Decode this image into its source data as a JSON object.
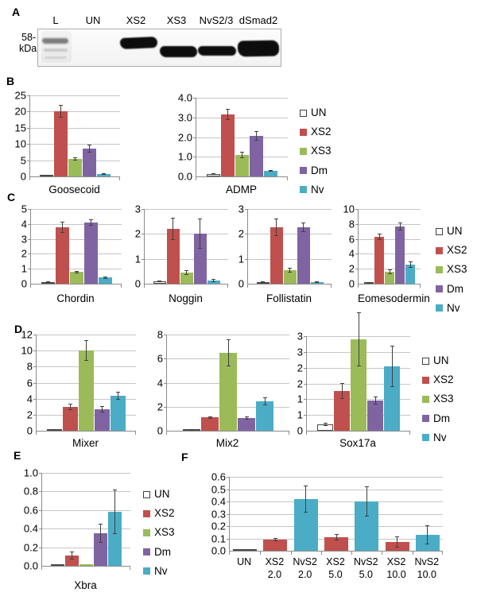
{
  "panels": {
    "A": {
      "label": "A",
      "marker_line1": "58-",
      "marker_line2": "kDa",
      "lanes": [
        "L",
        "UN",
        "XS2",
        "XS3",
        "NvS2/3",
        "dSmad2"
      ]
    },
    "B": {
      "label": "B"
    },
    "C": {
      "label": "C"
    },
    "D": {
      "label": "D"
    },
    "E": {
      "label": "E"
    },
    "F": {
      "label": "F"
    }
  },
  "legend_entries": [
    "UN",
    "XS2",
    "XS3",
    "Dm",
    "Nv"
  ],
  "series_colors": {
    "UN": "#FFFFFF",
    "XS2": "#C0504D",
    "XS3": "#9BBB59",
    "Dm": "#8064A2",
    "Nv": "#4BACC6"
  },
  "chart_data": [
    {
      "id": "goosecoid",
      "panel": "B",
      "type": "bar",
      "title": "Goosecoid",
      "ylim": [
        0,
        25
      ],
      "yticks": [
        "0",
        "5",
        "10",
        "15",
        "20",
        "25"
      ],
      "grid": true,
      "bars": [
        {
          "series": "UN",
          "value": 0.2,
          "err": 0
        },
        {
          "series": "XS2",
          "value": 20.2,
          "err": 2.0
        },
        {
          "series": "XS3",
          "value": 5.5,
          "err": 0.4
        },
        {
          "series": "Dm",
          "value": 8.5,
          "err": 1.3
        },
        {
          "series": "Nv",
          "value": 0.7,
          "err": 0.25
        }
      ]
    },
    {
      "id": "admp",
      "panel": "B",
      "type": "bar",
      "title": "ADMP",
      "ylim": [
        0,
        4
      ],
      "yticks": [
        "0.0",
        "1.0",
        "2.0",
        "3.0",
        "4.0"
      ],
      "grid": true,
      "bars": [
        {
          "series": "UN",
          "value": 0.12,
          "err": 0.05
        },
        {
          "series": "XS2",
          "value": 3.15,
          "err": 0.3
        },
        {
          "series": "XS3",
          "value": 1.1,
          "err": 0.15
        },
        {
          "series": "Dm",
          "value": 2.05,
          "err": 0.25
        },
        {
          "series": "Nv",
          "value": 0.28,
          "err": 0.05
        }
      ]
    },
    {
      "id": "chordin",
      "panel": "C",
      "type": "bar",
      "title": "Chordin",
      "ylim": [
        0,
        5
      ],
      "yticks": [
        "0",
        "1",
        "2",
        "3",
        "4",
        "5"
      ],
      "grid": true,
      "bars": [
        {
          "series": "UN",
          "value": 0.1,
          "err": 0.03
        },
        {
          "series": "XS2",
          "value": 3.75,
          "err": 0.35
        },
        {
          "series": "XS3",
          "value": 0.8,
          "err": 0.08
        },
        {
          "series": "Dm",
          "value": 4.1,
          "err": 0.2
        },
        {
          "series": "Nv",
          "value": 0.45,
          "err": 0.08
        }
      ]
    },
    {
      "id": "noggin",
      "panel": "C",
      "type": "bar",
      "title": "Noggin",
      "ylim": [
        0,
        3
      ],
      "yticks": [
        "0",
        "1",
        "2",
        "3"
      ],
      "grid": true,
      "bars": [
        {
          "series": "UN",
          "value": 0.08,
          "err": 0.02
        },
        {
          "series": "XS2",
          "value": 2.2,
          "err": 0.45
        },
        {
          "series": "XS3",
          "value": 0.45,
          "err": 0.1
        },
        {
          "series": "Dm",
          "value": 2.0,
          "err": 0.62
        },
        {
          "series": "Nv",
          "value": 0.12,
          "err": 0.05
        }
      ]
    },
    {
      "id": "follistatin",
      "panel": "C",
      "type": "bar",
      "title": "Follistatin",
      "ylim": [
        0,
        3
      ],
      "yticks": [
        "0",
        "1",
        "2",
        "3"
      ],
      "grid": true,
      "bars": [
        {
          "series": "UN",
          "value": 0.06,
          "err": 0.02
        },
        {
          "series": "XS2",
          "value": 2.25,
          "err": 0.35
        },
        {
          "series": "XS3",
          "value": 0.55,
          "err": 0.1
        },
        {
          "series": "Dm",
          "value": 2.25,
          "err": 0.2
        },
        {
          "series": "Nv",
          "value": 0.06,
          "err": 0.03
        }
      ]
    },
    {
      "id": "eomesodermin",
      "panel": "C",
      "type": "bar",
      "title": "Eomesodermin",
      "ylim": [
        0,
        10
      ],
      "yticks": [
        "0",
        "2",
        "4",
        "6",
        "8",
        "10"
      ],
      "grid": true,
      "bars": [
        {
          "series": "UN",
          "value": 0.1,
          "err": 0.03
        },
        {
          "series": "XS2",
          "value": 6.3,
          "err": 0.4
        },
        {
          "series": "XS3",
          "value": 1.6,
          "err": 0.35
        },
        {
          "series": "Dm",
          "value": 7.7,
          "err": 0.55
        },
        {
          "series": "Nv",
          "value": 2.6,
          "err": 0.45
        }
      ]
    },
    {
      "id": "mixer",
      "panel": "D",
      "type": "bar",
      "title": "Mixer",
      "ylim": [
        0,
        12
      ],
      "yticks": [
        "0",
        "2",
        "4",
        "6",
        "8",
        "10",
        "12"
      ],
      "grid": true,
      "bars": [
        {
          "series": "UN",
          "value": 0.2,
          "err": 0.05
        },
        {
          "series": "XS2",
          "value": 3.0,
          "err": 0.35
        },
        {
          "series": "XS3",
          "value": 10.0,
          "err": 1.3
        },
        {
          "series": "Dm",
          "value": 2.7,
          "err": 0.35
        },
        {
          "series": "Nv",
          "value": 4.4,
          "err": 0.5
        }
      ]
    },
    {
      "id": "mix2",
      "panel": "D",
      "type": "bar",
      "title": "Mix2",
      "ylim": [
        0,
        8
      ],
      "yticks": [
        "0",
        "2",
        "4",
        "6",
        "8"
      ],
      "grid": true,
      "bars": [
        {
          "series": "UN",
          "value": 0.07,
          "err": 0.02
        },
        {
          "series": "XS2",
          "value": 1.15,
          "err": 0.1
        },
        {
          "series": "XS3",
          "value": 6.5,
          "err": 1.1
        },
        {
          "series": "Dm",
          "value": 1.05,
          "err": 0.15
        },
        {
          "series": "Nv",
          "value": 2.45,
          "err": 0.3
        }
      ]
    },
    {
      "id": "sox17a",
      "panel": "D",
      "type": "bar",
      "title": "Sox17a",
      "ylim": [
        0,
        3
      ],
      "yticks": [
        "0",
        "1",
        "1",
        "2",
        "2",
        "3",
        "3"
      ],
      "grid": true,
      "bars": [
        {
          "series": "UN",
          "value": 0.2,
          "err": 0.06
        },
        {
          "series": "XS2",
          "value": 1.25,
          "err": 0.25
        },
        {
          "series": "XS3",
          "value": 2.9,
          "err": 0.85
        },
        {
          "series": "Dm",
          "value": 0.95,
          "err": 0.12
        },
        {
          "series": "Nv",
          "value": 2.05,
          "err": 0.65
        }
      ]
    },
    {
      "id": "xbra",
      "panel": "E",
      "type": "bar",
      "title": "Xbra",
      "ylim": [
        0,
        1
      ],
      "yticks": [
        "0.0",
        "0.2",
        "0.4",
        "0.6",
        "0.8",
        "1.0"
      ],
      "grid": true,
      "bars": [
        {
          "series": "UN",
          "value": 0.015,
          "err": 0
        },
        {
          "series": "XS2",
          "value": 0.11,
          "err": 0.04
        },
        {
          "series": "XS3",
          "value": 0.015,
          "err": 0
        },
        {
          "series": "Dm",
          "value": 0.35,
          "err": 0.1
        },
        {
          "series": "Nv",
          "value": 0.58,
          "err": 0.24
        }
      ]
    },
    {
      "id": "dose_response",
      "panel": "F",
      "type": "bar",
      "title": "",
      "ylim": [
        0,
        0.6
      ],
      "yticks": [
        "0.0",
        "0.1",
        "0.2",
        "0.3",
        "0.4",
        "0.5",
        "0.6"
      ],
      "grid": true,
      "bars": [
        {
          "series": "UN",
          "labels": [
            "UN"
          ],
          "value": 0.005,
          "err": 0
        },
        {
          "series": "XS2",
          "labels": [
            "XS2",
            "2.0"
          ],
          "value": 0.09,
          "err": 0.015
        },
        {
          "series": "Nv",
          "labels": [
            "NvS2",
            "2.0"
          ],
          "value": 0.42,
          "err": 0.11
        },
        {
          "series": "XS2",
          "labels": [
            "XS2",
            "5.0"
          ],
          "value": 0.11,
          "err": 0.025
        },
        {
          "series": "Nv",
          "labels": [
            "NvS2",
            "5.0"
          ],
          "value": 0.4,
          "err": 0.12
        },
        {
          "series": "XS2",
          "labels": [
            "XS2",
            "10.0"
          ],
          "value": 0.07,
          "err": 0.045
        },
        {
          "series": "Nv",
          "labels": [
            "NvS2",
            "10.0"
          ],
          "value": 0.13,
          "err": 0.08
        }
      ]
    }
  ]
}
